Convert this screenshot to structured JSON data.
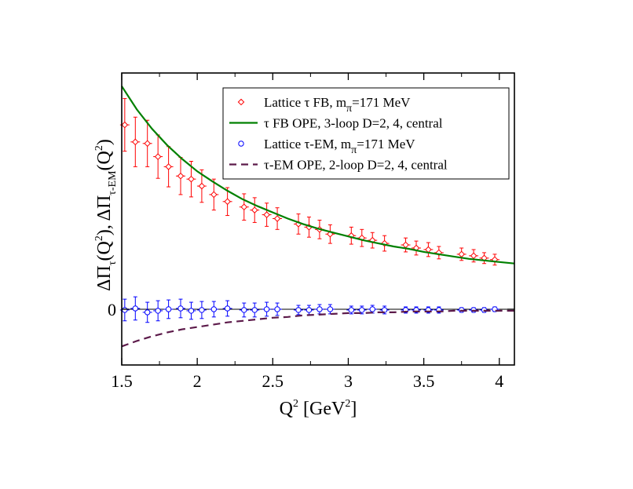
{
  "chart_data": {
    "type": "scatter",
    "xlabel": {
      "main": "Q",
      "sup": "2",
      "rest": " [GeV",
      "sup2": "2",
      "end": "]"
    },
    "ylabel": {
      "p1": "ΔΠ",
      "s1": "τ",
      "p2": "(Q",
      "s2": "2",
      "p3": "), ΔΠ",
      "s3": "τ-EM",
      "p4": "(Q",
      "s4": "2",
      "p5": ")"
    },
    "xlim": [
      1.5,
      4.1
    ],
    "ylim": [
      -0.0072,
      0.0305
    ],
    "x_ticks": [
      {
        "v": 1.5,
        "label": "1.5"
      },
      {
        "v": 2,
        "label": "2"
      },
      {
        "v": 2.5,
        "label": "2.5"
      },
      {
        "v": 3,
        "label": "3"
      },
      {
        "v": 3.5,
        "label": "3.5"
      },
      {
        "v": 4,
        "label": "4"
      }
    ],
    "y_ticks": [
      {
        "v": 0,
        "label": "0"
      }
    ],
    "legend_position": "top-right",
    "legend": [
      {
        "marker": "diamond",
        "color": "#ff0000",
        "text": "Lattice τ FB, m",
        "sub": "π",
        "after": "=171 MeV"
      },
      {
        "marker": "line",
        "color": "#008000",
        "text": "τ FB OPE, 3-loop D=2, 4, central",
        "sub": "",
        "after": ""
      },
      {
        "marker": "circle",
        "color": "#0000ff",
        "text": "Lattice τ-EM, m",
        "sub": "π",
        "after": "=171 MeV"
      },
      {
        "marker": "dash",
        "color": "#5c1a4a",
        "text": "τ-EM OPE, 2-loop D=2, 4, central",
        "sub": "",
        "after": ""
      }
    ],
    "series": [
      {
        "name": "Lattice τ FB, mπ=171 MeV",
        "kind": "points",
        "marker": "diamond",
        "color": "#ff0000",
        "x": [
          1.52,
          1.59,
          1.67,
          1.74,
          1.81,
          1.89,
          1.96,
          2.03,
          2.11,
          2.2,
          2.31,
          2.38,
          2.46,
          2.53,
          2.67,
          2.74,
          2.81,
          2.88,
          3.02,
          3.09,
          3.16,
          3.24,
          3.38,
          3.45,
          3.53,
          3.6,
          3.75,
          3.83,
          3.9,
          3.97
        ],
        "y": [
          0.0238,
          0.0216,
          0.0214,
          0.0197,
          0.0184,
          0.0172,
          0.0168,
          0.0159,
          0.0148,
          0.0139,
          0.0132,
          0.0128,
          0.0122,
          0.0117,
          0.011,
          0.0106,
          0.0103,
          0.0097,
          0.0095,
          0.0092,
          0.0089,
          0.0085,
          0.0083,
          0.0079,
          0.0077,
          0.0073,
          0.0071,
          0.0069,
          0.0066,
          0.0064
        ],
        "err": [
          0.0034,
          0.0032,
          0.003,
          0.0028,
          0.0026,
          0.0024,
          0.0023,
          0.0021,
          0.002,
          0.0018,
          0.0017,
          0.0016,
          0.0015,
          0.0014,
          0.0013,
          0.0013,
          0.0012,
          0.0012,
          0.0011,
          0.0011,
          0.001,
          0.001,
          0.0009,
          0.0009,
          0.0009,
          0.0008,
          0.0008,
          0.0008,
          0.0007,
          0.0007
        ]
      },
      {
        "name": "τ FB OPE, 3-loop D=2, 4, central",
        "kind": "line",
        "style": "solid",
        "color": "#008000",
        "x": [
          1.5,
          1.6,
          1.7,
          1.8,
          1.9,
          2.0,
          2.1,
          2.2,
          2.3,
          2.4,
          2.5,
          2.6,
          2.7,
          2.8,
          2.9,
          3.0,
          3.1,
          3.2,
          3.3,
          3.4,
          3.5,
          3.6,
          3.7,
          3.8,
          3.9,
          4.0,
          4.1
        ],
        "y": [
          0.0288,
          0.0258,
          0.0233,
          0.0212,
          0.0194,
          0.0178,
          0.0165,
          0.0153,
          0.0142,
          0.0133,
          0.0125,
          0.0117,
          0.011,
          0.0104,
          0.0099,
          0.0094,
          0.0089,
          0.0085,
          0.0081,
          0.0078,
          0.0074,
          0.0071,
          0.0068,
          0.0065,
          0.0063,
          0.0061,
          0.0059
        ]
      },
      {
        "name": "Lattice τ-EM, mπ=171 MeV",
        "kind": "points",
        "marker": "circle",
        "color": "#0000ff",
        "x": [
          1.52,
          1.59,
          1.67,
          1.74,
          1.81,
          1.89,
          1.96,
          2.03,
          2.11,
          2.2,
          2.31,
          2.38,
          2.46,
          2.53,
          2.67,
          2.74,
          2.81,
          2.88,
          3.02,
          3.09,
          3.16,
          3.24,
          3.38,
          3.45,
          3.53,
          3.6,
          3.75,
          3.83,
          3.9,
          3.97
        ],
        "y": [
          -0.0001,
          0.0001,
          -0.0004,
          -0.0002,
          0.0,
          0.0001,
          -0.0002,
          -0.0001,
          0.0,
          0.0001,
          -0.0001,
          -0.0001,
          0.0,
          0.0,
          -0.0001,
          -0.0001,
          0.0,
          0.0,
          -0.0001,
          -0.0001,
          0.0,
          -0.0001,
          -0.0001,
          -0.0001,
          -0.0001,
          -0.0001,
          -0.0001,
          -0.0001,
          -0.0001,
          0.0
        ],
        "err": [
          0.0014,
          0.0015,
          0.0013,
          0.0013,
          0.0012,
          0.0012,
          0.0011,
          0.0011,
          0.001,
          0.001,
          0.0009,
          0.0009,
          0.0009,
          0.0008,
          0.0006,
          0.0006,
          0.0006,
          0.0006,
          0.0005,
          0.0005,
          0.0005,
          0.0005,
          0.0004,
          0.0004,
          0.0004,
          0.0004,
          0.0003,
          0.0003,
          0.0003,
          0.0003
        ]
      },
      {
        "name": "τ-EM OPE, 2-loop D=2, 4, central",
        "kind": "line",
        "style": "dashed",
        "color": "#5c1a4a",
        "x": [
          1.5,
          1.6,
          1.7,
          1.8,
          1.9,
          2.0,
          2.1,
          2.2,
          2.3,
          2.4,
          2.5,
          2.6,
          2.7,
          2.8,
          2.9,
          3.0,
          3.1,
          3.2,
          3.3,
          3.4,
          3.5,
          3.6,
          3.7,
          3.8,
          3.9,
          4.0,
          4.1
        ],
        "y": [
          -0.0048,
          -0.0041,
          -0.0035,
          -0.003,
          -0.0026,
          -0.0023,
          -0.002,
          -0.0017,
          -0.0015,
          -0.0013,
          -0.0011,
          -0.001,
          -0.0008,
          -0.0007,
          -0.0006,
          -0.0005,
          -0.0005,
          -0.0004,
          -0.0004,
          -0.0003,
          -0.0003,
          -0.0003,
          -0.0002,
          -0.0002,
          -0.0002,
          -0.0002,
          -0.0002
        ]
      }
    ]
  }
}
